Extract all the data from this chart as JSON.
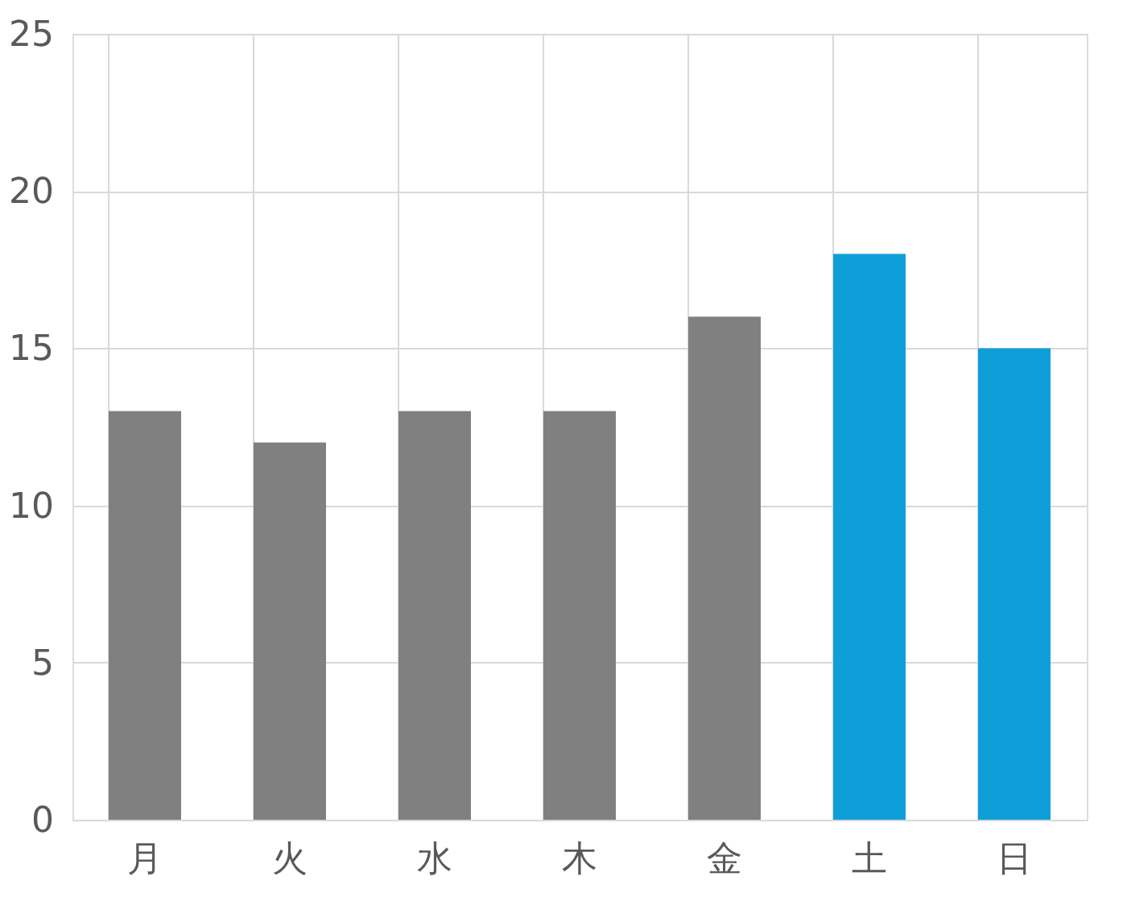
{
  "chart_data": {
    "type": "bar",
    "categories": [
      "月",
      "火",
      "水",
      "木",
      "金",
      "土",
      "日"
    ],
    "values": [
      13,
      12,
      13,
      13,
      16,
      18,
      15
    ],
    "colors": [
      "#808080",
      "#808080",
      "#808080",
      "#808080",
      "#808080",
      "#0f9fd8",
      "#0f9fd8"
    ],
    "ylim": [
      0,
      25
    ],
    "yticks": [
      0,
      5,
      10,
      15,
      20,
      25
    ],
    "grid": true,
    "legend": false
  }
}
